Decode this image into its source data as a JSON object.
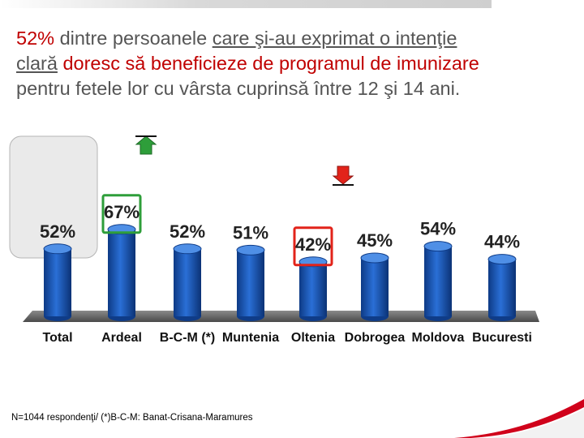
{
  "headline": {
    "part1": "52%",
    "part2": " dintre persoanele ",
    "part3": "care şi-au exprimat o intenţie clară",
    "part4": " doresc să beneficieze de programul de imunizare",
    "part5": " pentru fetele lor cu vârsta cuprinsă între 12 şi 14 ani."
  },
  "chart_data": {
    "type": "bar",
    "title": "",
    "xlabel": "",
    "ylabel": "",
    "ylim": [
      0,
      100
    ],
    "categories": [
      "Total",
      "Ardeal",
      "B-C-M (*)",
      "Muntenia",
      "Oltenia",
      "Dobrogea",
      "Moldova",
      "Bucuresti"
    ],
    "values": [
      52,
      67,
      52,
      51,
      42,
      45,
      54,
      44
    ],
    "labels": [
      "52%",
      "67%",
      "52%",
      "51%",
      "42%",
      "45%",
      "54%",
      "44%"
    ],
    "highlight_high": "Ardeal",
    "highlight_low": "Oltenia"
  },
  "colors": {
    "bar": "#1f5fbf",
    "bar_dark": "#0f3c88",
    "highlight_high": "#2e9e3a",
    "highlight_low": "#e2231a",
    "arrow_up": "#2e9e3a",
    "arrow_down": "#e2231a",
    "accent": "#c00000"
  },
  "footnote": "N=1044 respondenţi/ (*)B-C-M: Banat-Crisana-Maramures"
}
